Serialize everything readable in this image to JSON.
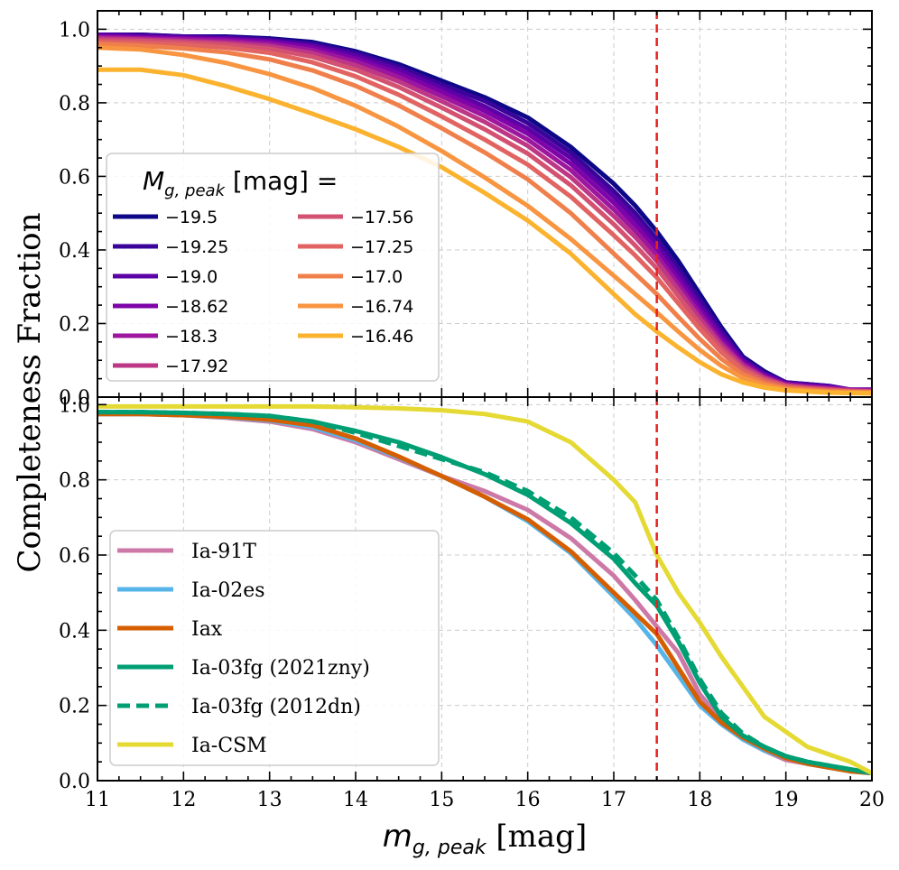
{
  "chart_data": [
    {
      "type": "line",
      "panel": "top",
      "xlabel": "m_{g,peak} [mag]",
      "ylabel": "Completeness Fraction",
      "xlim": [
        11,
        20
      ],
      "ylim": [
        0,
        1.05
      ],
      "grid": true,
      "legend_title_prefix": "M",
      "legend_title_sub": "g, peak",
      "legend_title_suffix": " [mag] =",
      "legend_position": "center-left",
      "vline": {
        "x": 17.5,
        "color": "#e8221e",
        "style": "dashed"
      },
      "x": [
        11,
        11.5,
        12,
        12.5,
        13,
        13.5,
        14,
        14.5,
        15,
        15.5,
        16,
        16.5,
        17,
        17.25,
        17.5,
        17.75,
        18,
        18.25,
        18.5,
        18.75,
        19,
        19.25,
        19.5,
        19.75,
        20
      ],
      "series": [
        {
          "name": "−19.5",
          "color": "#0d0887",
          "values": [
            0.985,
            0.985,
            0.98,
            0.98,
            0.975,
            0.965,
            0.94,
            0.905,
            0.86,
            0.815,
            0.76,
            0.68,
            0.58,
            0.52,
            0.45,
            0.37,
            0.28,
            0.19,
            0.11,
            0.07,
            0.04,
            0.035,
            0.03,
            0.02,
            0.02
          ]
        },
        {
          "name": "−19.25",
          "color": "#3a049a",
          "values": [
            0.985,
            0.985,
            0.98,
            0.978,
            0.972,
            0.96,
            0.935,
            0.898,
            0.85,
            0.805,
            0.745,
            0.665,
            0.56,
            0.5,
            0.43,
            0.35,
            0.265,
            0.18,
            0.105,
            0.065,
            0.04,
            0.035,
            0.03,
            0.02,
            0.02
          ]
        },
        {
          "name": "−19.0",
          "color": "#5c01a6",
          "values": [
            0.985,
            0.98,
            0.978,
            0.975,
            0.968,
            0.955,
            0.928,
            0.89,
            0.84,
            0.79,
            0.73,
            0.65,
            0.545,
            0.485,
            0.415,
            0.335,
            0.25,
            0.17,
            0.1,
            0.062,
            0.038,
            0.032,
            0.028,
            0.02,
            0.02
          ]
        },
        {
          "name": "−18.62",
          "color": "#7e03a8",
          "values": [
            0.98,
            0.978,
            0.975,
            0.972,
            0.965,
            0.95,
            0.92,
            0.88,
            0.83,
            0.778,
            0.716,
            0.634,
            0.528,
            0.468,
            0.4,
            0.32,
            0.238,
            0.16,
            0.095,
            0.058,
            0.036,
            0.03,
            0.026,
            0.02,
            0.02
          ]
        },
        {
          "name": "−18.3",
          "color": "#9c179e",
          "values": [
            0.978,
            0.975,
            0.972,
            0.968,
            0.96,
            0.943,
            0.912,
            0.87,
            0.818,
            0.764,
            0.7,
            0.617,
            0.51,
            0.452,
            0.385,
            0.306,
            0.226,
            0.15,
            0.09,
            0.055,
            0.034,
            0.028,
            0.024,
            0.02,
            0.018
          ]
        },
        {
          "name": "−17.92",
          "color": "#bd3786",
          "values": [
            0.975,
            0.972,
            0.968,
            0.963,
            0.954,
            0.935,
            0.902,
            0.858,
            0.804,
            0.748,
            0.683,
            0.598,
            0.492,
            0.435,
            0.37,
            0.292,
            0.214,
            0.142,
            0.085,
            0.052,
            0.032,
            0.026,
            0.022,
            0.018,
            0.016
          ]
        },
        {
          "name": "−17.56",
          "color": "#d35171",
          "values": [
            0.97,
            0.968,
            0.964,
            0.958,
            0.947,
            0.925,
            0.89,
            0.843,
            0.787,
            0.728,
            0.662,
            0.576,
            0.47,
            0.412,
            0.35,
            0.275,
            0.2,
            0.132,
            0.078,
            0.048,
            0.03,
            0.024,
            0.02,
            0.016,
            0.015
          ]
        },
        {
          "name": "−17.25",
          "color": "#e16462",
          "values": [
            0.965,
            0.962,
            0.958,
            0.95,
            0.936,
            0.91,
            0.872,
            0.822,
            0.763,
            0.7,
            0.632,
            0.545,
            0.44,
            0.385,
            0.325,
            0.255,
            0.185,
            0.122,
            0.072,
            0.044,
            0.028,
            0.022,
            0.018,
            0.015,
            0.014
          ]
        },
        {
          "name": "−17.0",
          "color": "#f0804b",
          "values": [
            0.96,
            0.955,
            0.948,
            0.937,
            0.918,
            0.888,
            0.846,
            0.793,
            0.731,
            0.665,
            0.592,
            0.5,
            0.39,
            0.335,
            0.28,
            0.218,
            0.158,
            0.104,
            0.062,
            0.038,
            0.024,
            0.02,
            0.016,
            0.014,
            0.013
          ]
        },
        {
          "name": "−16.74",
          "color": "#f89540",
          "values": [
            0.95,
            0.945,
            0.93,
            0.908,
            0.878,
            0.84,
            0.792,
            0.735,
            0.669,
            0.597,
            0.52,
            0.43,
            0.33,
            0.28,
            0.23,
            0.178,
            0.128,
            0.085,
            0.052,
            0.032,
            0.021,
            0.017,
            0.014,
            0.012,
            0.012
          ]
        },
        {
          "name": "−16.46",
          "color": "#fbb32f",
          "values": [
            0.89,
            0.89,
            0.875,
            0.845,
            0.81,
            0.77,
            0.728,
            0.68,
            0.625,
            0.555,
            0.48,
            0.39,
            0.28,
            0.225,
            0.178,
            0.135,
            0.095,
            0.062,
            0.04,
            0.026,
            0.018,
            0.015,
            0.012,
            0.011,
            0.01
          ]
        }
      ]
    },
    {
      "type": "line",
      "panel": "bottom",
      "xlabel": "m_{g,peak} [mag]",
      "ylabel": "Completeness Fraction",
      "xlim": [
        11,
        20
      ],
      "ylim": [
        0,
        1.02
      ],
      "grid": true,
      "legend_position": "lower-left",
      "vline": {
        "x": 17.5,
        "color": "#e8221e",
        "style": "dashed"
      },
      "x": [
        11,
        11.5,
        12,
        12.5,
        13,
        13.5,
        14,
        14.5,
        15,
        15.5,
        16,
        16.5,
        17,
        17.25,
        17.5,
        17.75,
        18,
        18.25,
        18.5,
        18.75,
        19,
        19.25,
        19.5,
        19.75,
        20
      ],
      "series": [
        {
          "name": "Ia-91T",
          "color": "#cc79a7",
          "dashed": false,
          "values": [
            0.975,
            0.975,
            0.972,
            0.965,
            0.955,
            0.935,
            0.9,
            0.855,
            0.81,
            0.77,
            0.72,
            0.645,
            0.545,
            0.48,
            0.41,
            0.34,
            0.23,
            0.16,
            0.11,
            0.08,
            0.055,
            0.045,
            0.035,
            0.03,
            0.02
          ]
        },
        {
          "name": "Ia-02es",
          "color": "#56b4e9",
          "dashed": false,
          "values": [
            0.975,
            0.975,
            0.972,
            0.967,
            0.958,
            0.94,
            0.905,
            0.86,
            0.81,
            0.755,
            0.69,
            0.605,
            0.49,
            0.43,
            0.36,
            0.28,
            0.2,
            0.15,
            0.11,
            0.08,
            0.06,
            0.045,
            0.035,
            0.025,
            0.02
          ]
        },
        {
          "name": "Iax",
          "color": "#d55e00",
          "dashed": false,
          "values": [
            0.975,
            0.975,
            0.972,
            0.968,
            0.96,
            0.945,
            0.91,
            0.862,
            0.81,
            0.755,
            0.695,
            0.61,
            0.5,
            0.445,
            0.39,
            0.3,
            0.21,
            0.155,
            0.115,
            0.085,
            0.06,
            0.045,
            0.035,
            0.025,
            0.02
          ]
        },
        {
          "name": "Ia-03fg (2021zny)",
          "color": "#009e73",
          "dashed": false,
          "values": [
            0.98,
            0.98,
            0.978,
            0.975,
            0.97,
            0.955,
            0.93,
            0.9,
            0.86,
            0.815,
            0.76,
            0.685,
            0.59,
            0.525,
            0.465,
            0.37,
            0.26,
            0.17,
            0.12,
            0.09,
            0.065,
            0.05,
            0.04,
            0.03,
            0.02
          ]
        },
        {
          "name": "Ia-03fg (2012dn)",
          "color": "#009e73",
          "dashed": true,
          "values": [
            0.98,
            0.98,
            0.978,
            0.975,
            0.97,
            0.955,
            0.925,
            0.89,
            0.855,
            0.82,
            0.77,
            0.7,
            0.605,
            0.545,
            0.48,
            0.38,
            0.27,
            0.18,
            0.125,
            0.09,
            0.065,
            0.05,
            0.04,
            0.03,
            0.02
          ]
        },
        {
          "name": "Ia-CSM",
          "color": "#e5d934",
          "dashed": false,
          "values": [
            0.995,
            0.995,
            0.995,
            0.995,
            0.995,
            0.995,
            0.993,
            0.99,
            0.985,
            0.975,
            0.955,
            0.9,
            0.8,
            0.74,
            0.6,
            0.5,
            0.42,
            0.33,
            0.25,
            0.17,
            0.13,
            0.09,
            0.07,
            0.05,
            0.02
          ]
        }
      ]
    }
  ],
  "axis": {
    "x_ticks": [
      "11",
      "12",
      "13",
      "14",
      "15",
      "16",
      "17",
      "18",
      "19",
      "20"
    ],
    "y_ticks": [
      "0.0",
      "0.2",
      "0.4",
      "0.6",
      "0.8",
      "1.0"
    ],
    "xlabel_main": "m",
    "xlabel_sub": "g, peak",
    "xlabel_unit": " [mag]",
    "ylabel": "Completeness Fraction"
  }
}
